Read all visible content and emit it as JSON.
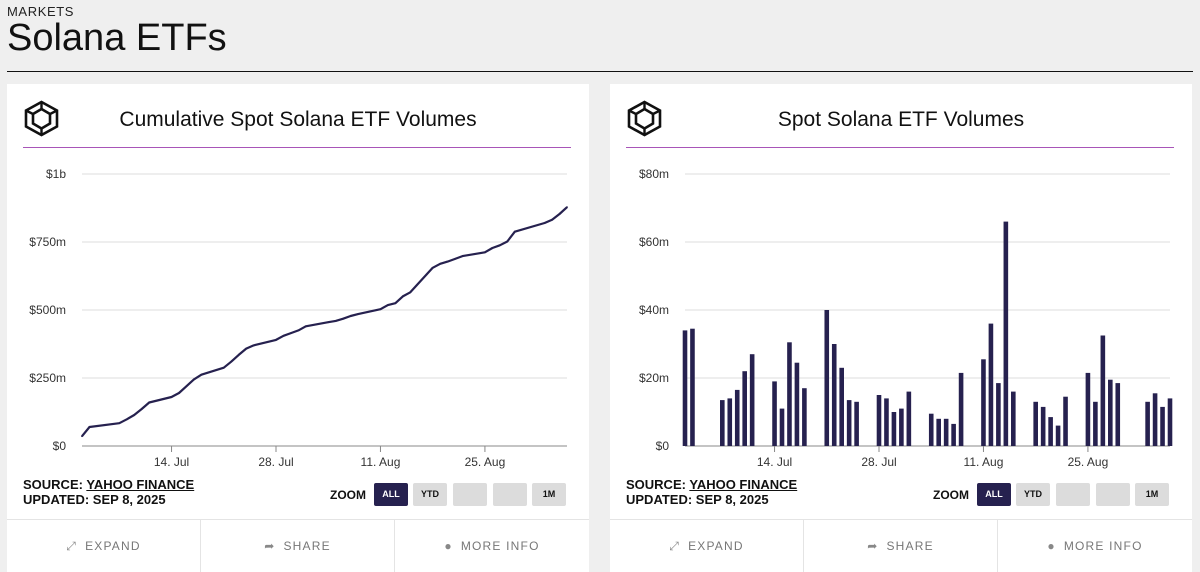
{
  "header": {
    "kicker": "MARKETS",
    "title": "Solana ETFs"
  },
  "cards": [
    {
      "title": "Cumulative Spot Solana ETF Volumes",
      "source_label": "SOURCE:",
      "source_name": "YAHOO FINANCE",
      "updated": "UPDATED: SEP 8, 2025",
      "zoom_label": "ZOOM",
      "zoom": [
        "ALL",
        "YTD",
        "",
        "",
        "1M"
      ],
      "zoom_active": "ALL",
      "footer": {
        "expand": "EXPAND",
        "share": "SHARE",
        "more_info": "MORE INFO"
      }
    },
    {
      "title": "Spot Solana ETF Volumes",
      "source_label": "SOURCE:",
      "source_name": "YAHOO FINANCE",
      "updated": "UPDATED: SEP 8, 2025",
      "zoom_label": "ZOOM",
      "zoom": [
        "ALL",
        "YTD",
        "",
        "",
        "1M"
      ],
      "zoom_active": "ALL",
      "footer": {
        "expand": "EXPAND",
        "share": "SHARE",
        "more_info": "MORE INFO"
      }
    }
  ],
  "colors": {
    "series": "#26214f",
    "rule": "#a855b8",
    "grid": "#dddddd"
  },
  "icons": {
    "logo": "cube-logo-icon",
    "expand": "expand-arrows-icon",
    "share": "share-arrow-icon",
    "info": "info-circle-icon"
  },
  "chart_data": [
    {
      "type": "line",
      "title": "Cumulative Spot Solana ETF Volumes",
      "x_start": "2025-07-02",
      "x_end": "2025-09-05",
      "ylim": [
        0,
        1000
      ],
      "y_unit": "millions USD",
      "y_ticks": [
        0,
        250,
        500,
        750,
        1000
      ],
      "y_tick_labels": [
        "$0",
        "$250m",
        "$500m",
        "$750m",
        "$1b"
      ],
      "x_ticks": [
        "2025-07-14",
        "2025-07-28",
        "2025-08-11",
        "2025-08-25"
      ],
      "x_tick_labels": [
        "14. Jul",
        "28. Jul",
        "11. Aug",
        "25. Aug"
      ],
      "grid": true,
      "series": [
        {
          "x": [
            "2025-07-02",
            "2025-07-03",
            "2025-07-07",
            "2025-07-08",
            "2025-07-09",
            "2025-07-10",
            "2025-07-11",
            "2025-07-14",
            "2025-07-15",
            "2025-07-16",
            "2025-07-17",
            "2025-07-18",
            "2025-07-21",
            "2025-07-22",
            "2025-07-23",
            "2025-07-24",
            "2025-07-25",
            "2025-07-28",
            "2025-07-29",
            "2025-07-30",
            "2025-07-31",
            "2025-08-01",
            "2025-08-04",
            "2025-08-05",
            "2025-08-06",
            "2025-08-07",
            "2025-08-08",
            "2025-08-11",
            "2025-08-12",
            "2025-08-13",
            "2025-08-14",
            "2025-08-15",
            "2025-08-18",
            "2025-08-19",
            "2025-08-20",
            "2025-08-21",
            "2025-08-22",
            "2025-08-25",
            "2025-08-26",
            "2025-08-27",
            "2025-08-28",
            "2025-08-29",
            "2025-09-02",
            "2025-09-03",
            "2025-09-04",
            "2025-09-05"
          ],
          "values": [
            36,
            70,
            84,
            98,
            114,
            136,
            160,
            180,
            195,
            220,
            245,
            262,
            288,
            310,
            335,
            358,
            370,
            390,
            405,
            415,
            425,
            440,
            455,
            460,
            468,
            478,
            485,
            503,
            518,
            525,
            550,
            565,
            655,
            670,
            678,
            688,
            698,
            712,
            728,
            738,
            752,
            788,
            820,
            832,
            853,
            878
          ]
        }
      ]
    },
    {
      "type": "bar",
      "title": "Spot Solana ETF Volumes",
      "x_start": "2025-07-02",
      "x_end": "2025-09-05",
      "ylim": [
        0,
        80
      ],
      "y_unit": "millions USD",
      "y_ticks": [
        0,
        20,
        40,
        60,
        80
      ],
      "y_tick_labels": [
        "$0",
        "$20m",
        "$40m",
        "$60m",
        "$80m"
      ],
      "x_ticks": [
        "2025-07-14",
        "2025-07-28",
        "2025-08-11",
        "2025-08-25"
      ],
      "x_tick_labels": [
        "14. Jul",
        "28. Jul",
        "11. Aug",
        "25. Aug"
      ],
      "grid": true,
      "series": [
        {
          "x": [
            "2025-07-02",
            "2025-07-03",
            "2025-07-07",
            "2025-07-08",
            "2025-07-09",
            "2025-07-10",
            "2025-07-11",
            "2025-07-14",
            "2025-07-15",
            "2025-07-16",
            "2025-07-17",
            "2025-07-18",
            "2025-07-21",
            "2025-07-22",
            "2025-07-23",
            "2025-07-24",
            "2025-07-25",
            "2025-07-28",
            "2025-07-29",
            "2025-07-30",
            "2025-07-31",
            "2025-08-01",
            "2025-08-04",
            "2025-08-05",
            "2025-08-06",
            "2025-08-07",
            "2025-08-08",
            "2025-08-11",
            "2025-08-12",
            "2025-08-13",
            "2025-08-14",
            "2025-08-15",
            "2025-08-18",
            "2025-08-19",
            "2025-08-20",
            "2025-08-21",
            "2025-08-22",
            "2025-08-25",
            "2025-08-26",
            "2025-08-27",
            "2025-08-28",
            "2025-08-29",
            "2025-09-02",
            "2025-09-03",
            "2025-09-04",
            "2025-09-05"
          ],
          "values": [
            34,
            34.5,
            13.5,
            14,
            16.5,
            22,
            27,
            19,
            11,
            30.5,
            24.5,
            17,
            40,
            30,
            23,
            13.5,
            13,
            15,
            14,
            10,
            11,
            16,
            9.5,
            8,
            8,
            6.5,
            21.5,
            25.5,
            36,
            18.5,
            66,
            16,
            13,
            11.5,
            8.5,
            6,
            14.5,
            21.5,
            13,
            32.5,
            19.5,
            18.5,
            13,
            15.5,
            11.5,
            14
          ]
        }
      ]
    }
  ]
}
